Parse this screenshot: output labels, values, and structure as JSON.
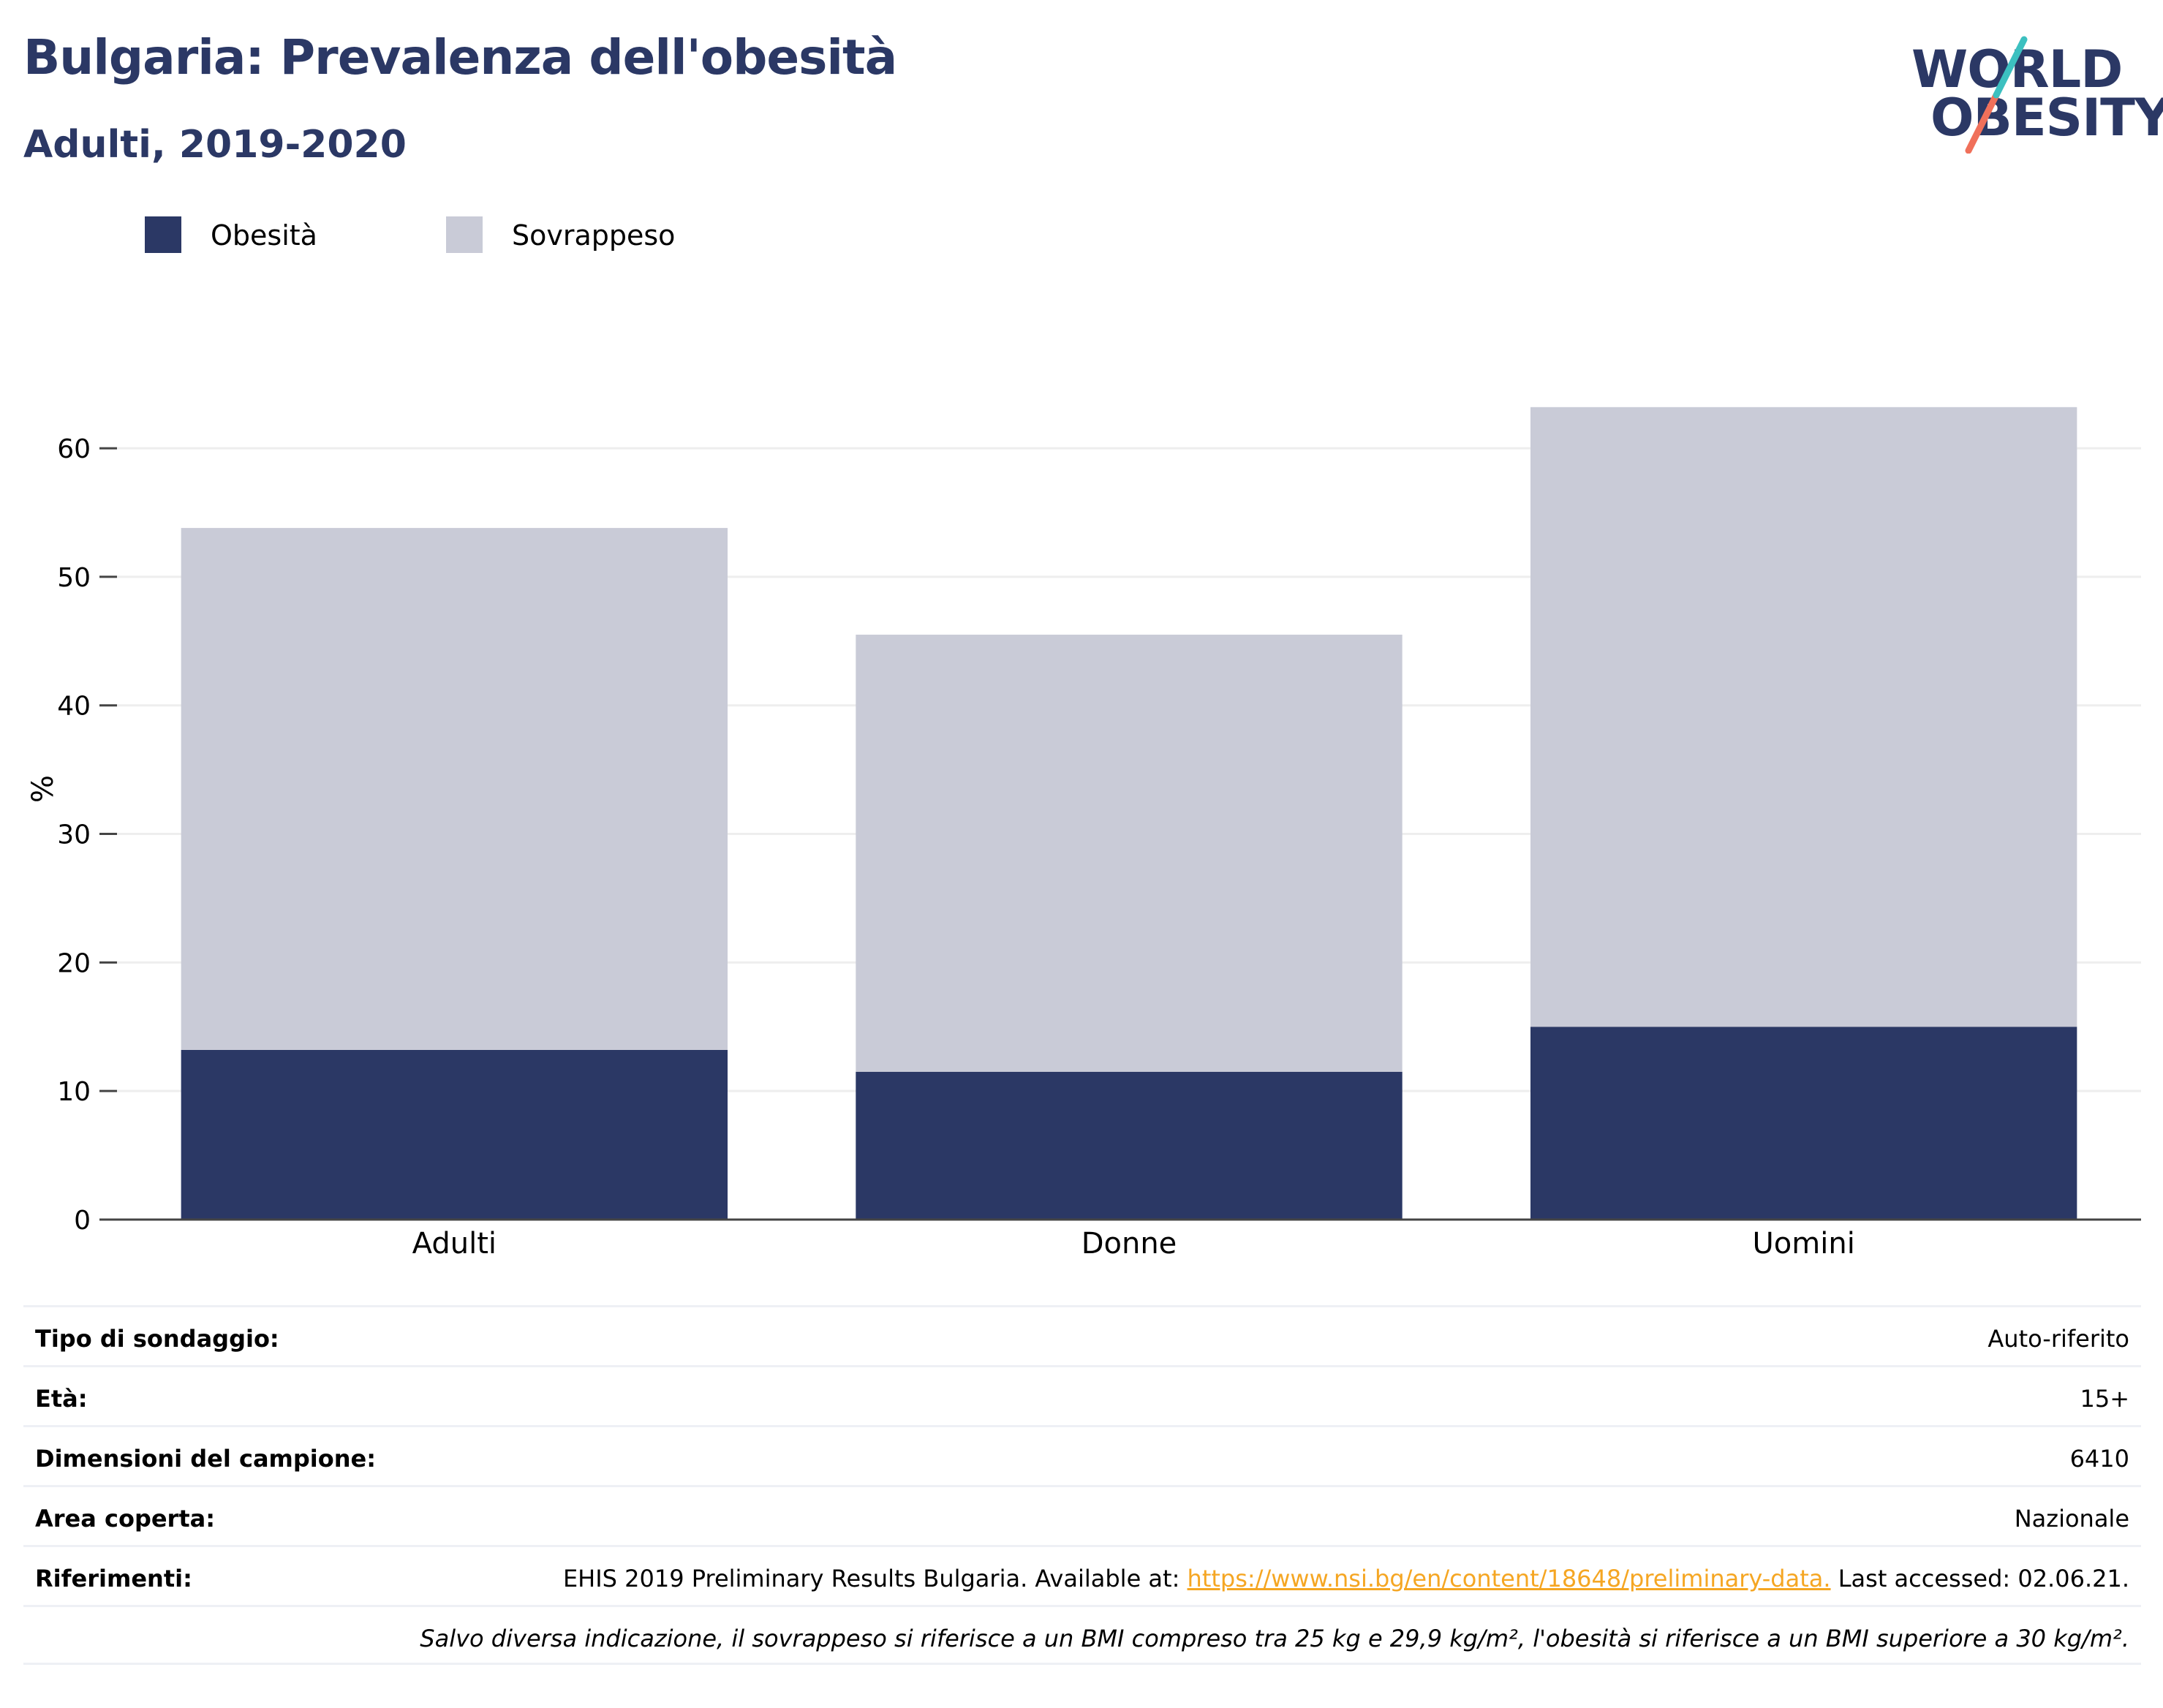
{
  "header": {
    "title": "Bulgaria: Prevalenza dell'obesità",
    "subtitle": "Adulti, 2019-2020"
  },
  "logo": {
    "line1": "WORLD",
    "line2": "OBESITY"
  },
  "legend": [
    {
      "label": "Obesità",
      "color": "#2b3865"
    },
    {
      "label": "Sovrappeso",
      "color": "#c9cbd7"
    }
  ],
  "chart_data": {
    "type": "bar",
    "stacked": true,
    "categories": [
      "Adulti",
      "Donne",
      "Uomini"
    ],
    "series": [
      {
        "name": "Obesità",
        "color": "#2b3865",
        "values": [
          13.2,
          11.5,
          15.0
        ]
      },
      {
        "name": "Sovrappeso",
        "color": "#c9cbd7",
        "values": [
          40.6,
          34.0,
          48.2
        ]
      }
    ],
    "ylabel": "%",
    "ylim": [
      0,
      67
    ],
    "yticks": [
      0,
      10,
      20,
      30,
      40,
      50,
      60
    ],
    "grid": true,
    "legend_position": "top-left"
  },
  "info": [
    {
      "key": "Tipo di sondaggio:",
      "value": "Auto-riferito"
    },
    {
      "key": "Età:",
      "value": "15+"
    },
    {
      "key": "Dimensioni del campione:",
      "value": "6410"
    },
    {
      "key": "Area coperta:",
      "value": "Nazionale"
    },
    {
      "key": "Riferimenti:",
      "value_prefix": "EHIS 2019 Preliminary Results Bulgaria. Available at: ",
      "link": "https://www.nsi.bg/en/content/18648/preliminary-data.",
      "value_suffix": " Last accessed: 02.06.21."
    }
  ],
  "note": "Salvo diversa indicazione, il sovrappeso si riferisce a un BMI compreso tra 25 kg e 29,9 kg/m², l'obesità si riferisce a un BMI superiore a 30 kg/m²."
}
